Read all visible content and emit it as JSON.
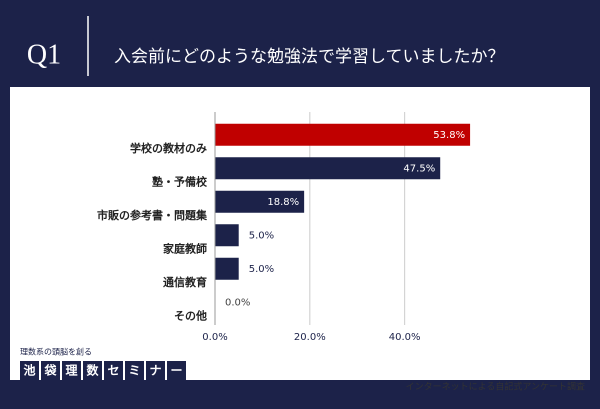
{
  "header": {
    "number": "Q1",
    "question": "入会前にどのような勉強法で学習していましたか？"
  },
  "chart_data": {
    "type": "bar",
    "orientation": "horizontal",
    "categories": [
      "学校の教材のみ",
      "塾・予備校",
      "市販の参考書・問題集",
      "家庭教師",
      "通信教育",
      "その他"
    ],
    "values": [
      53.8,
      47.5,
      18.8,
      5.0,
      5.0,
      0.0
    ],
    "value_labels": [
      "53.8%",
      "47.5%",
      "18.8%",
      "5.0%",
      "5.0%",
      "0.0%"
    ],
    "colors": [
      "#c00000",
      "#1c2249",
      "#1c2249",
      "#1c2249",
      "#1c2249",
      "#1c2249"
    ],
    "xlim": [
      0,
      58
    ],
    "xticks": [
      {
        "value": 0,
        "label": "0.0%"
      },
      {
        "value": 20,
        "label": "20.0%"
      },
      {
        "value": 40,
        "label": "40.0%"
      }
    ],
    "grid": true
  },
  "logo": {
    "tagline": "理数系の頭脳を創る",
    "name": [
      "池",
      "袋",
      "理",
      "数",
      "セ",
      "ミ",
      "ナ",
      "ー"
    ]
  },
  "note": "インターネットによる自記式アンケート調査"
}
